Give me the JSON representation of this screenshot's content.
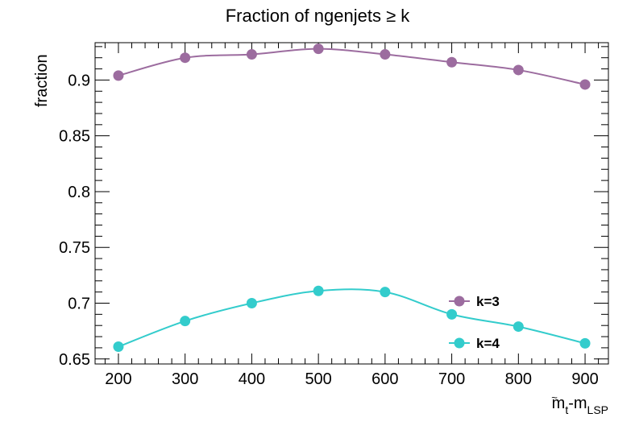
{
  "chart_data": {
    "type": "line",
    "title": "Fraction of ngenjets ≥ k",
    "xlabel": {
      "main": "m",
      "sub1": "t",
      "sup1": "~",
      "dash": "-m",
      "sub2": "LSP"
    },
    "ylabel": "fraction",
    "xlim": [
      165,
      935
    ],
    "ylim": [
      0.6455,
      0.9335
    ],
    "x": [
      200,
      300,
      400,
      500,
      600,
      700,
      800,
      900
    ],
    "x_ticks": [
      200,
      300,
      400,
      500,
      600,
      700,
      800,
      900
    ],
    "x_tick_labels": [
      "200",
      "300",
      "400",
      "500",
      "600",
      "700",
      "800",
      "900"
    ],
    "y_ticks": [
      0.65,
      0.7,
      0.75,
      0.8,
      0.85,
      0.9
    ],
    "y_tick_labels": [
      "0.65",
      "0.7",
      "0.75",
      "0.8",
      "0.85",
      "0.9"
    ],
    "grid": false,
    "legend_position": "bottom-right",
    "series": [
      {
        "name": "k=3",
        "color": "#9c6c9f",
        "values": [
          0.904,
          0.92,
          0.923,
          0.928,
          0.923,
          0.916,
          0.909,
          0.896
        ]
      },
      {
        "name": "k=4",
        "color": "#33cccc",
        "values": [
          0.661,
          0.684,
          0.7,
          0.711,
          0.71,
          0.69,
          0.679,
          0.664
        ]
      }
    ]
  }
}
